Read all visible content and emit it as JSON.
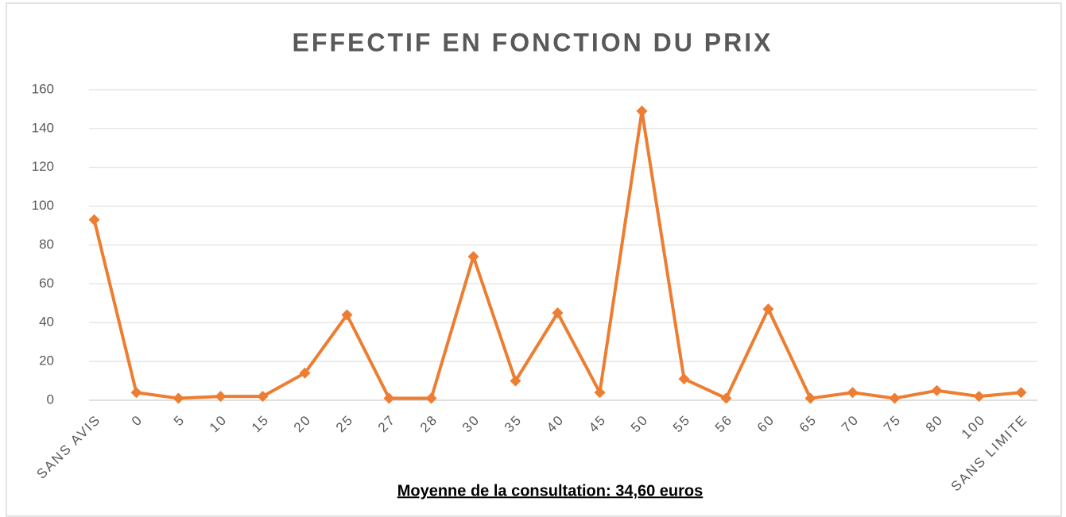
{
  "chart_data": {
    "type": "line",
    "title": "EFFECTIF EN FONCTION DU PRIX",
    "annotation": "Moyenne de la consultation: 34,60 euros",
    "categories": [
      "SANS AVIS",
      "0",
      "5",
      "10",
      "15",
      "20",
      "25",
      "27",
      "28",
      "30",
      "35",
      "40",
      "45",
      "50",
      "55",
      "56",
      "60",
      "65",
      "70",
      "75",
      "80",
      "100",
      "SANS LIMITE"
    ],
    "series": [
      {
        "name": "Effectif",
        "color": "#ed7d31",
        "values": [
          93,
          4,
          1,
          2,
          2,
          14,
          44,
          1,
          1,
          74,
          10,
          45,
          4,
          149,
          11,
          1,
          47,
          1,
          4,
          1,
          5,
          2,
          4
        ]
      }
    ],
    "ylim": [
      0,
      160
    ],
    "yticks": [
      0,
      20,
      40,
      60,
      80,
      100,
      120,
      140,
      160
    ],
    "grid": true,
    "legend": false
  }
}
